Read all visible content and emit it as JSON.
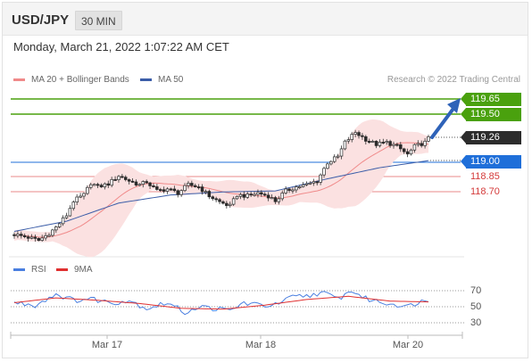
{
  "header": {
    "symbol": "USD/JPY",
    "timeframe": "30 MIN"
  },
  "datetime": "Monday, March 21, 2022 1:07:22 AM CET",
  "legend": {
    "ma_bollinger": "MA 20 + Bollinger Bands",
    "ma50": "MA 50",
    "credit": "Research © 2022 Trading Central"
  },
  "colors": {
    "green": "#4aa10e",
    "blue": "#1f6fd9",
    "red": "#d43a3a",
    "band_fill": "#fbe1e1",
    "ma20": "#f08a8a",
    "ma50": "#3b5da8",
    "rsi": "#4a7fe0",
    "rsi_ma": "#e03030"
  },
  "levels": {
    "resistance_2": "119.65",
    "resistance_1": "119.50",
    "last_price": "119.26",
    "pivot": "119.00",
    "support_1": "118.85",
    "support_2": "118.70"
  },
  "rsi_legend": {
    "rsi": "RSI",
    "ma": "9MA"
  },
  "rsi_ticks": [
    "70",
    "50",
    "30"
  ],
  "x_ticks": [
    "Mar 17",
    "Mar 18",
    "Mar 20"
  ],
  "chart_data": {
    "type": "candlestick",
    "pivots": [
      [
        0,
        118.31
      ],
      [
        4,
        118.28
      ],
      [
        7,
        118.25
      ],
      [
        10,
        118.32
      ],
      [
        12,
        118.38
      ],
      [
        15,
        118.5
      ],
      [
        17,
        118.64
      ],
      [
        20,
        118.7
      ],
      [
        22,
        118.82
      ],
      [
        24,
        118.78
      ],
      [
        27,
        118.81
      ],
      [
        30,
        118.89
      ],
      [
        33,
        118.84
      ],
      [
        36,
        118.8
      ],
      [
        38,
        118.83
      ],
      [
        41,
        118.74
      ],
      [
        44,
        118.76
      ],
      [
        47,
        118.72
      ],
      [
        50,
        118.8
      ],
      [
        53,
        118.78
      ],
      [
        56,
        118.69
      ],
      [
        59,
        118.63
      ],
      [
        62,
        118.59
      ],
      [
        64,
        118.7
      ],
      [
        67,
        118.69
      ],
      [
        70,
        118.72
      ],
      [
        73,
        118.69
      ],
      [
        75,
        118.64
      ],
      [
        78,
        118.74
      ],
      [
        81,
        118.78
      ],
      [
        84,
        118.8
      ],
      [
        87,
        118.84
      ],
      [
        90,
        119.02
      ],
      [
        93,
        119.08
      ],
      [
        95,
        119.22
      ],
      [
        98,
        119.32
      ],
      [
        101,
        119.25
      ],
      [
        104,
        119.2
      ],
      [
        107,
        119.22
      ],
      [
        110,
        119.18
      ],
      [
        113,
        119.1
      ],
      [
        115,
        119.18
      ],
      [
        118,
        119.22
      ],
      [
        119,
        119.26
      ]
    ],
    "ma50_points": [
      [
        0,
        118.34
      ],
      [
        15,
        118.44
      ],
      [
        30,
        118.62
      ],
      [
        45,
        118.7
      ],
      [
        60,
        118.73
      ],
      [
        75,
        118.74
      ],
      [
        90,
        118.86
      ],
      [
        105,
        118.97
      ],
      [
        119,
        119.04
      ]
    ],
    "rsi_pivots": [
      [
        0,
        55
      ],
      [
        6,
        52
      ],
      [
        12,
        66
      ],
      [
        17,
        58
      ],
      [
        22,
        60
      ],
      [
        28,
        55
      ],
      [
        33,
        58
      ],
      [
        38,
        48
      ],
      [
        44,
        55
      ],
      [
        49,
        43
      ],
      [
        53,
        50
      ],
      [
        57,
        48
      ],
      [
        62,
        45
      ],
      [
        66,
        55
      ],
      [
        70,
        52
      ],
      [
        75,
        52
      ],
      [
        80,
        62
      ],
      [
        85,
        64
      ],
      [
        88,
        68
      ],
      [
        93,
        60
      ],
      [
        97,
        70
      ],
      [
        101,
        60
      ],
      [
        106,
        55
      ],
      [
        110,
        53
      ],
      [
        113,
        50
      ],
      [
        116,
        56
      ],
      [
        119,
        58
      ]
    ],
    "rsi_ma_points": [
      [
        0,
        55
      ],
      [
        12,
        61
      ],
      [
        24,
        58
      ],
      [
        36,
        54
      ],
      [
        48,
        48
      ],
      [
        60,
        47
      ],
      [
        72,
        52
      ],
      [
        84,
        59
      ],
      [
        96,
        63
      ],
      [
        108,
        57
      ],
      [
        119,
        56
      ]
    ],
    "projection": {
      "from": 119.26,
      "to": 119.65
    },
    "price_range": [
      118.25,
      119.75
    ],
    "rsi_range": [
      30,
      70
    ],
    "x_labels": [
      "Mar 17",
      "Mar 18",
      "Mar 20"
    ]
  }
}
